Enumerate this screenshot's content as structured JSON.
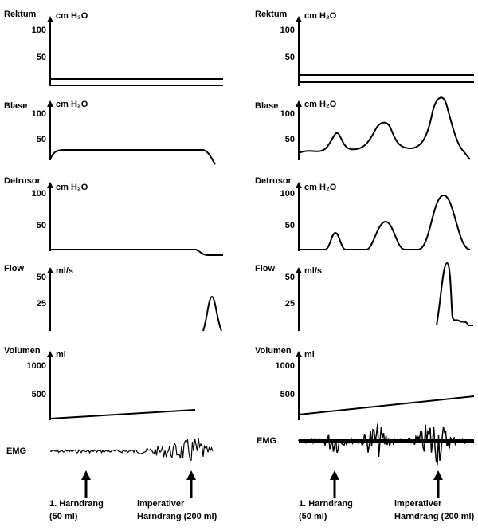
{
  "left": {
    "panels": [
      {
        "label": "Rektum",
        "unit": "cm H₂O",
        "ticks": [
          "100",
          "50"
        ]
      },
      {
        "label": "Blase",
        "unit": "cm H₂O",
        "ticks": [
          "100",
          "50"
        ]
      },
      {
        "label": "Detrusor",
        "unit": "cm H₂O",
        "ticks": [
          "100",
          "50"
        ]
      },
      {
        "label": "Flow",
        "unit": "ml/s",
        "ticks": [
          "50",
          "25"
        ]
      },
      {
        "label": "Volumen",
        "unit": "ml",
        "ticks": [
          "1000",
          "500"
        ]
      }
    ],
    "emg": "EMG",
    "markers": [
      {
        "lines": [
          "1. Harndrang",
          "(50 ml)"
        ]
      },
      {
        "lines": [
          "imperativer",
          "Harndrang (200 ml)"
        ]
      }
    ]
  },
  "right": {
    "panels": [
      {
        "label": "Rektum",
        "unit": "cm H₂O",
        "ticks": [
          "100",
          "50"
        ]
      },
      {
        "label": "Blase",
        "unit": "cm H₂O",
        "ticks": [
          "100",
          "50"
        ]
      },
      {
        "label": "Detrusor",
        "unit": "cm H₂O",
        "ticks": [
          "100",
          "50"
        ]
      },
      {
        "label": "Flow",
        "unit": "ml/s",
        "ticks": [
          "50",
          "25"
        ]
      },
      {
        "label": "Volumen",
        "unit": "ml",
        "ticks": [
          "1000",
          "500"
        ]
      }
    ],
    "emg": "EMG",
    "markers": [
      {
        "lines": [
          "1. Harndrang",
          "(50 ml)"
        ]
      },
      {
        "lines": [
          "imperativer",
          "Harndrang (200 ml)"
        ]
      }
    ]
  }
}
